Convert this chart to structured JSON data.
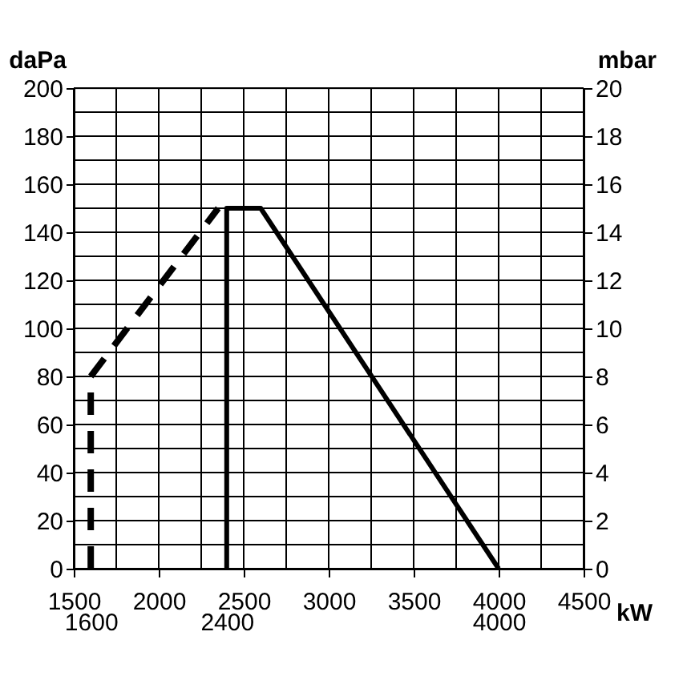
{
  "chart_data": {
    "type": "line",
    "xlabel": "kW",
    "ylabel": "daPa",
    "y2label": "mbar",
    "series": [
      {
        "color": "#000000",
        "line_style": "dashed",
        "x": [
          1600,
          1600,
          2350
        ],
        "values": [
          0,
          80,
          150
        ]
      },
      {
        "color": "#000000",
        "line_style": "solid",
        "x": [
          2400,
          2400,
          2600,
          4000
        ],
        "values": [
          0,
          150,
          150,
          0
        ]
      }
    ],
    "xlim": [
      1500,
      4500
    ],
    "xticks": [
      1500,
      {
        "value": 1750,
        "label": null
      },
      2000,
      {
        "value": 2250,
        "label": null
      },
      2500,
      {
        "value": 2750,
        "label": null
      },
      3000,
      {
        "value": 3250,
        "label": null
      },
      3500,
      {
        "value": 3750,
        "label": null
      },
      4000,
      {
        "value": 4250,
        "label": null
      },
      4500
    ],
    "ylim": [
      0,
      200
    ],
    "yticks": [
      0,
      {
        "value": 10,
        "label": null
      },
      20,
      {
        "value": 30,
        "label": null
      },
      40,
      {
        "value": 50,
        "label": null
      },
      60,
      {
        "value": 70,
        "label": null
      },
      80,
      {
        "value": 90,
        "label": null
      },
      100,
      {
        "value": 110,
        "label": null
      },
      120,
      {
        "value": 130,
        "label": null
      },
      140,
      {
        "value": 150,
        "label": null
      },
      160,
      {
        "value": 170,
        "label": null
      },
      180,
      {
        "value": 190,
        "label": null
      },
      200
    ],
    "y2lim": [
      0,
      20
    ],
    "y2ticks": [
      0,
      2,
      4,
      6,
      8,
      10,
      12,
      14,
      16,
      18,
      20
    ],
    "x2lim": [
      1500,
      4500
    ],
    "x2ticks": [
      1600,
      2400,
      4000
    ],
    "grid": true
  }
}
